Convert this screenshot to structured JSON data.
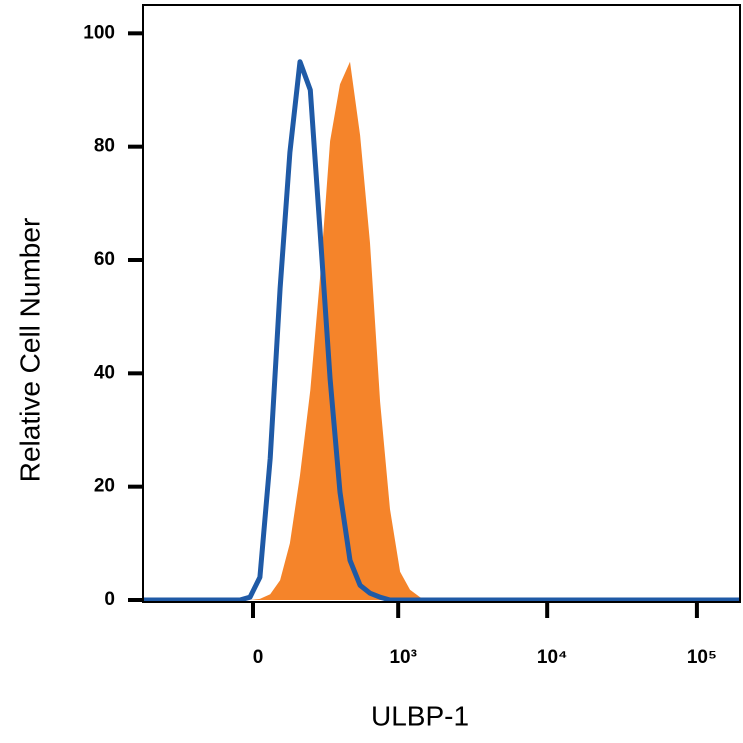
{
  "chart_data": {
    "type": "area",
    "xlabel": "ULBP-1",
    "ylabel": "Relative Cell Number",
    "xscale": "asinh",
    "xlim": [
      -569,
      194000
    ],
    "xticks": [
      0,
      {
        "value": 1000,
        "label": "10³"
      },
      {
        "value": 10000,
        "label": "10⁴"
      },
      {
        "value": 100000,
        "label": "10⁵"
      }
    ],
    "ylim": [
      0,
      105
    ],
    "yticks": [
      0,
      20,
      40,
      60,
      80,
      100
    ],
    "x": [
      -569,
      -44,
      -10,
      23,
      58,
      93,
      130,
      171,
      217,
      266,
      322,
      385,
      458,
      542,
      638,
      751,
      879,
      1031,
      1204,
      1408,
      1645,
      194000
    ],
    "series": [
      {
        "color": "#f5842a",
        "style": "fill",
        "values": [
          0,
          0,
          0,
          0.2,
          1,
          3.5,
          10,
          22,
          37,
          57,
          81,
          91,
          95,
          82,
          63,
          35,
          16,
          5,
          1.8,
          0.5,
          0,
          0
        ]
      },
      {
        "color": "#1f5aa6",
        "style": "line",
        "values": [
          0,
          0,
          0.5,
          4,
          25,
          55,
          79,
          95,
          90,
          65,
          39,
          19,
          7,
          2.6,
          1.2,
          0.5,
          0,
          0,
          0,
          0,
          0,
          0
        ]
      }
    ]
  }
}
